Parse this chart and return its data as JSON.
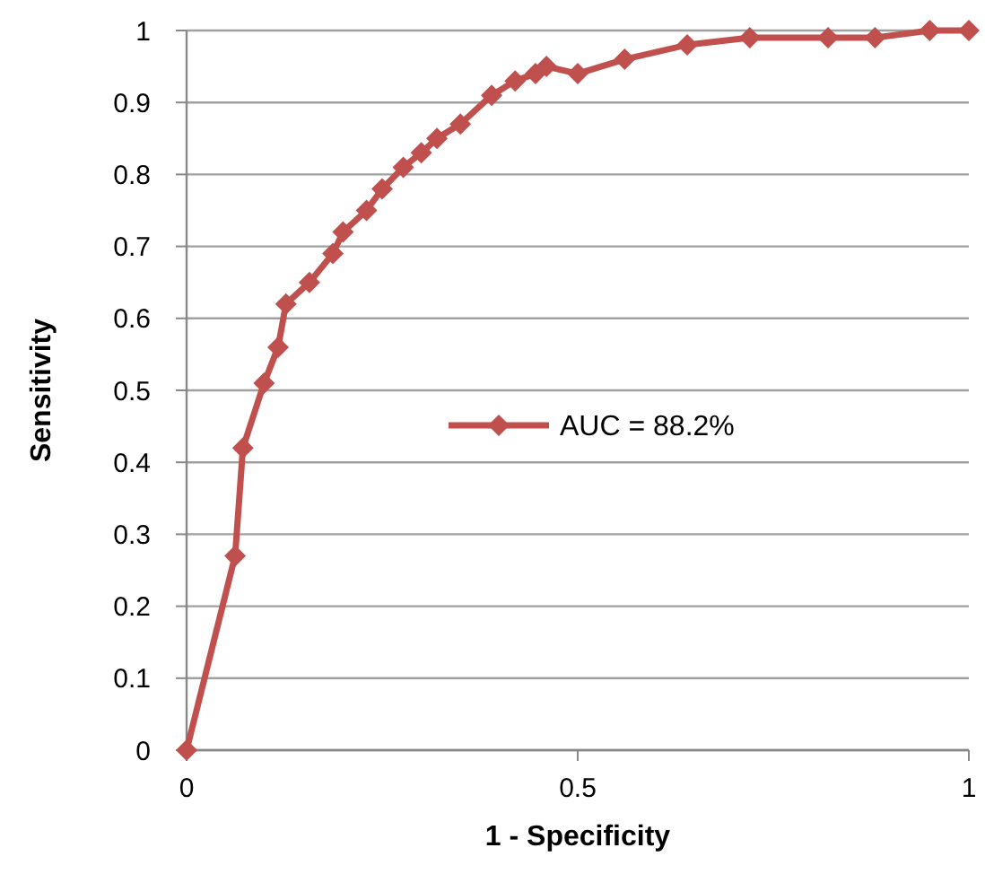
{
  "chart_data": {
    "type": "line",
    "xlabel": "1 - Specificity",
    "ylabel": "Sensitivity",
    "xlim": [
      0,
      1
    ],
    "xticks": [
      0,
      0.5,
      1
    ],
    "ylim": [
      0,
      1
    ],
    "yticks": [
      0,
      0.1,
      0.2,
      0.3,
      0.4,
      0.5,
      0.6,
      0.7,
      0.8,
      0.9,
      1
    ],
    "grid": "y",
    "legend": "right",
    "marker": "diamond",
    "line_style": "solid",
    "series": [
      {
        "name": "AUC = 88.2%",
        "color": "#c0504d",
        "x": [
          0,
          0.062,
          0.072,
          0.099,
          0.117,
          0.127,
          0.157,
          0.187,
          0.2,
          0.23,
          0.25,
          0.277,
          0.3,
          0.32,
          0.35,
          0.39,
          0.42,
          0.446,
          0.46,
          0.5,
          0.56,
          0.64,
          0.72,
          0.82,
          0.88,
          0.95,
          1
        ],
        "values": [
          0,
          0.27,
          0.42,
          0.51,
          0.56,
          0.62,
          0.65,
          0.69,
          0.72,
          0.75,
          0.78,
          0.81,
          0.83,
          0.85,
          0.87,
          0.91,
          0.93,
          0.94,
          0.95,
          0.94,
          0.96,
          0.98,
          0.99,
          0.99,
          0.99,
          1,
          1
        ]
      }
    ]
  }
}
